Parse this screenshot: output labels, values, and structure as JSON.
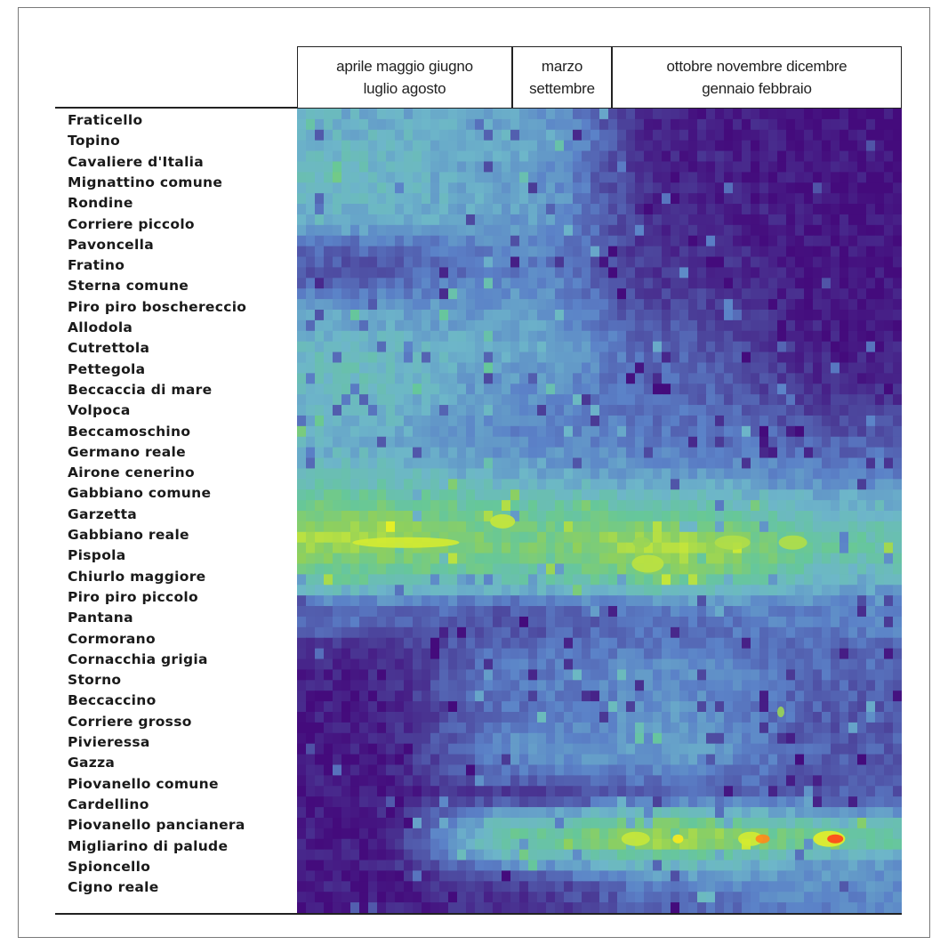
{
  "chart_data": {
    "type": "heatmap",
    "column_groups": [
      {
        "label": "aprile maggio giugno\nluglio agosto"
      },
      {
        "label": "marzo\nsettembre"
      },
      {
        "label": "ottobre novembre dicembre\ngennaio febbraio"
      }
    ],
    "rows": [
      "Fraticello",
      "Topino",
      "Cavaliere d'Italia",
      "Mignattino comune",
      "Rondine",
      "Corriere piccolo",
      "Pavoncella",
      "Fratino",
      "Sterna comune",
      "Piro piro boschereccio",
      "Allodola",
      "Cutrettola",
      "Pettegola",
      "Beccaccia di mare",
      "Volpoca",
      "Beccamoschino",
      "Germano reale",
      "Airone cenerino",
      "Gabbiano comune",
      "Garzetta",
      "Gabbiano reale",
      "Pispola",
      "Chiurlo maggiore",
      "Piro piro piccolo",
      "Pantana",
      "Cormorano",
      "Cornacchia grigia",
      "Storno",
      "Beccaccino",
      "Corriere grosso",
      "Pivieressa",
      "Gazza",
      "Piovanello comune",
      "Cardellino",
      "Piovanello pancianera",
      "Migliarino di palude",
      "Spioncello",
      "Cigno reale"
    ],
    "value_range": [
      0,
      1
    ],
    "colormap": [
      "#440b7c",
      "#4a3c96",
      "#5b82c8",
      "#6db6c9",
      "#66c79a",
      "#8fd05c",
      "#dff02a",
      "#ffe81a",
      "#ff2a1a"
    ],
    "profiles": [
      [
        0.4,
        0.36,
        0.05,
        0.02
      ],
      [
        0.42,
        0.4,
        0.06,
        0.02
      ],
      [
        0.44,
        0.36,
        0.06,
        0.02
      ],
      [
        0.44,
        0.34,
        0.06,
        0.02
      ],
      [
        0.42,
        0.38,
        0.07,
        0.02
      ],
      [
        0.4,
        0.34,
        0.07,
        0.02
      ],
      [
        0.22,
        0.3,
        0.09,
        0.02
      ],
      [
        0.18,
        0.26,
        0.1,
        0.02
      ],
      [
        0.24,
        0.32,
        0.12,
        0.02
      ],
      [
        0.36,
        0.34,
        0.14,
        0.03
      ],
      [
        0.4,
        0.36,
        0.18,
        0.04
      ],
      [
        0.44,
        0.4,
        0.2,
        0.05
      ],
      [
        0.46,
        0.34,
        0.22,
        0.06
      ],
      [
        0.44,
        0.32,
        0.22,
        0.08
      ],
      [
        0.42,
        0.3,
        0.24,
        0.14
      ],
      [
        0.4,
        0.3,
        0.26,
        0.18
      ],
      [
        0.42,
        0.34,
        0.3,
        0.24
      ],
      [
        0.46,
        0.4,
        0.36,
        0.3
      ],
      [
        0.56,
        0.52,
        0.48,
        0.4
      ],
      [
        0.66,
        0.56,
        0.58,
        0.46
      ],
      [
        0.72,
        0.62,
        0.74,
        0.52
      ],
      [
        0.6,
        0.56,
        0.68,
        0.48
      ],
      [
        0.5,
        0.46,
        0.54,
        0.38
      ],
      [
        0.24,
        0.2,
        0.28,
        0.3
      ],
      [
        0.22,
        0.18,
        0.24,
        0.28
      ],
      [
        0.08,
        0.24,
        0.26,
        0.22
      ],
      [
        0.06,
        0.26,
        0.32,
        0.22
      ],
      [
        0.05,
        0.28,
        0.3,
        0.2
      ],
      [
        0.04,
        0.24,
        0.34,
        0.18
      ],
      [
        0.04,
        0.3,
        0.34,
        0.18
      ],
      [
        0.04,
        0.32,
        0.36,
        0.2
      ],
      [
        0.04,
        0.24,
        0.26,
        0.18
      ],
      [
        0.04,
        0.1,
        0.22,
        0.2
      ],
      [
        0.04,
        0.44,
        0.54,
        0.4
      ],
      [
        0.04,
        0.56,
        0.76,
        0.56
      ],
      [
        0.04,
        0.4,
        0.48,
        0.36
      ],
      [
        0.04,
        0.14,
        0.3,
        0.32
      ],
      [
        0.04,
        0.1,
        0.22,
        0.3
      ]
    ]
  }
}
